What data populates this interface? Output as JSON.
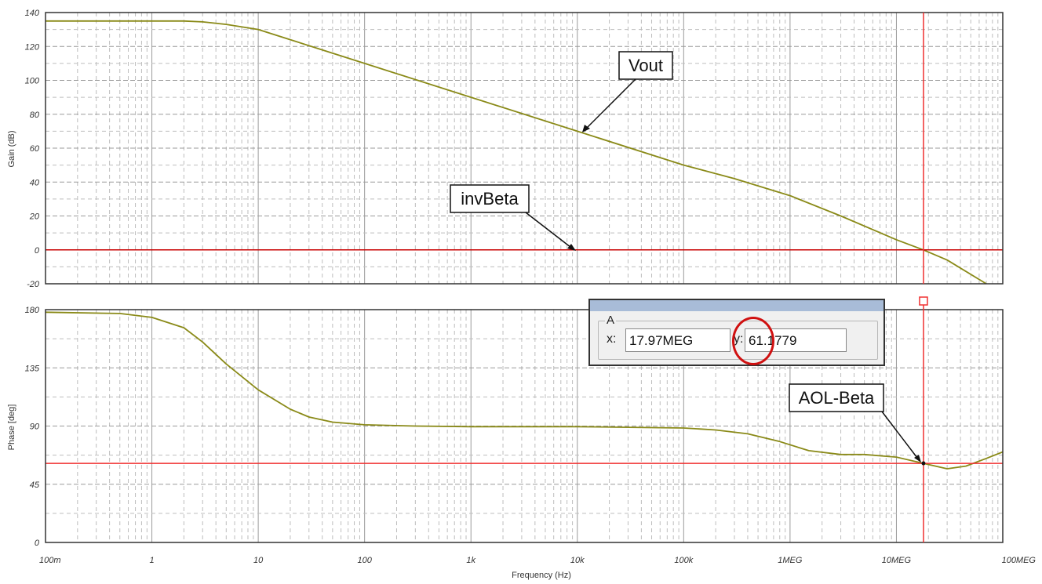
{
  "chart_data": [
    {
      "type": "line",
      "ylabel": "Gain (dB)",
      "xscale": "log",
      "xlim": [
        0.1,
        100000000
      ],
      "ylim": [
        -20,
        140
      ],
      "yticks": [
        "140",
        "120",
        "100",
        "80",
        "60",
        "40",
        "20",
        "0",
        "-20"
      ],
      "grid": true,
      "series": [
        {
          "name": "Vout",
          "color": "#8a8a18",
          "x": [
            0.1,
            1,
            2,
            3,
            5,
            10,
            20,
            50,
            100,
            1000,
            10000,
            100000,
            300000,
            1000000,
            3000000,
            10000000,
            17970000,
            30000000,
            70000000
          ],
          "y": [
            135,
            135,
            135,
            134.5,
            133,
            130,
            124,
            116,
            110,
            90,
            70,
            50,
            42,
            32,
            20,
            6,
            0,
            -6,
            -20
          ]
        },
        {
          "name": "invBeta",
          "color": "#c80000",
          "x": [
            0.1,
            100000000
          ],
          "y": [
            0,
            0
          ]
        }
      ],
      "annotations": [
        "Vout",
        "invBeta"
      ]
    },
    {
      "type": "line",
      "ylabel": "Phase [deg]",
      "xlabel": "Frequency (Hz)",
      "xscale": "log",
      "xlim": [
        0.1,
        100000000
      ],
      "ylim": [
        0,
        180
      ],
      "yticks": [
        "180",
        "135",
        "90",
        "45",
        "0"
      ],
      "xticks": [
        "100m",
        "1",
        "10",
        "100",
        "1k",
        "10k",
        "100k",
        "1MEG",
        "10MEG",
        "100MEG"
      ],
      "grid": true,
      "series": [
        {
          "name": "AOL-Beta",
          "color": "#8a8a18",
          "x": [
            0.1,
            0.5,
            1,
            2,
            3,
            5,
            10,
            20,
            30,
            50,
            100,
            300,
            1000,
            10000,
            100000,
            200000,
            400000,
            800000,
            1500000,
            3000000,
            5000000,
            10000000,
            17970000,
            30000000,
            45000000,
            70000000,
            100000000
          ],
          "y": [
            178,
            177,
            174,
            166,
            155,
            138,
            118,
            103,
            97,
            93,
            91,
            90,
            89.5,
            89.5,
            88.5,
            87,
            84,
            78,
            71,
            68,
            68,
            66,
            61.18,
            57,
            59,
            65,
            70
          ]
        },
        {
          "name": "cursor-level",
          "color": "#f03030",
          "x": [
            0.1,
            100000000
          ],
          "y": [
            61.18,
            61.18
          ]
        }
      ],
      "annotations": [
        "AOL-Beta"
      ]
    }
  ],
  "cursor": {
    "label": "A",
    "x_label": "x:",
    "x_value": "17.97MEG",
    "y_label": "y:",
    "y_value": "61.1779",
    "frequency": 17970000
  },
  "colors": {
    "trace": "#8a8a18",
    "reference_line": "#c80000",
    "cursor_line": "#f03030",
    "grid": "#bdbdbd",
    "highlight": "#d01010"
  }
}
